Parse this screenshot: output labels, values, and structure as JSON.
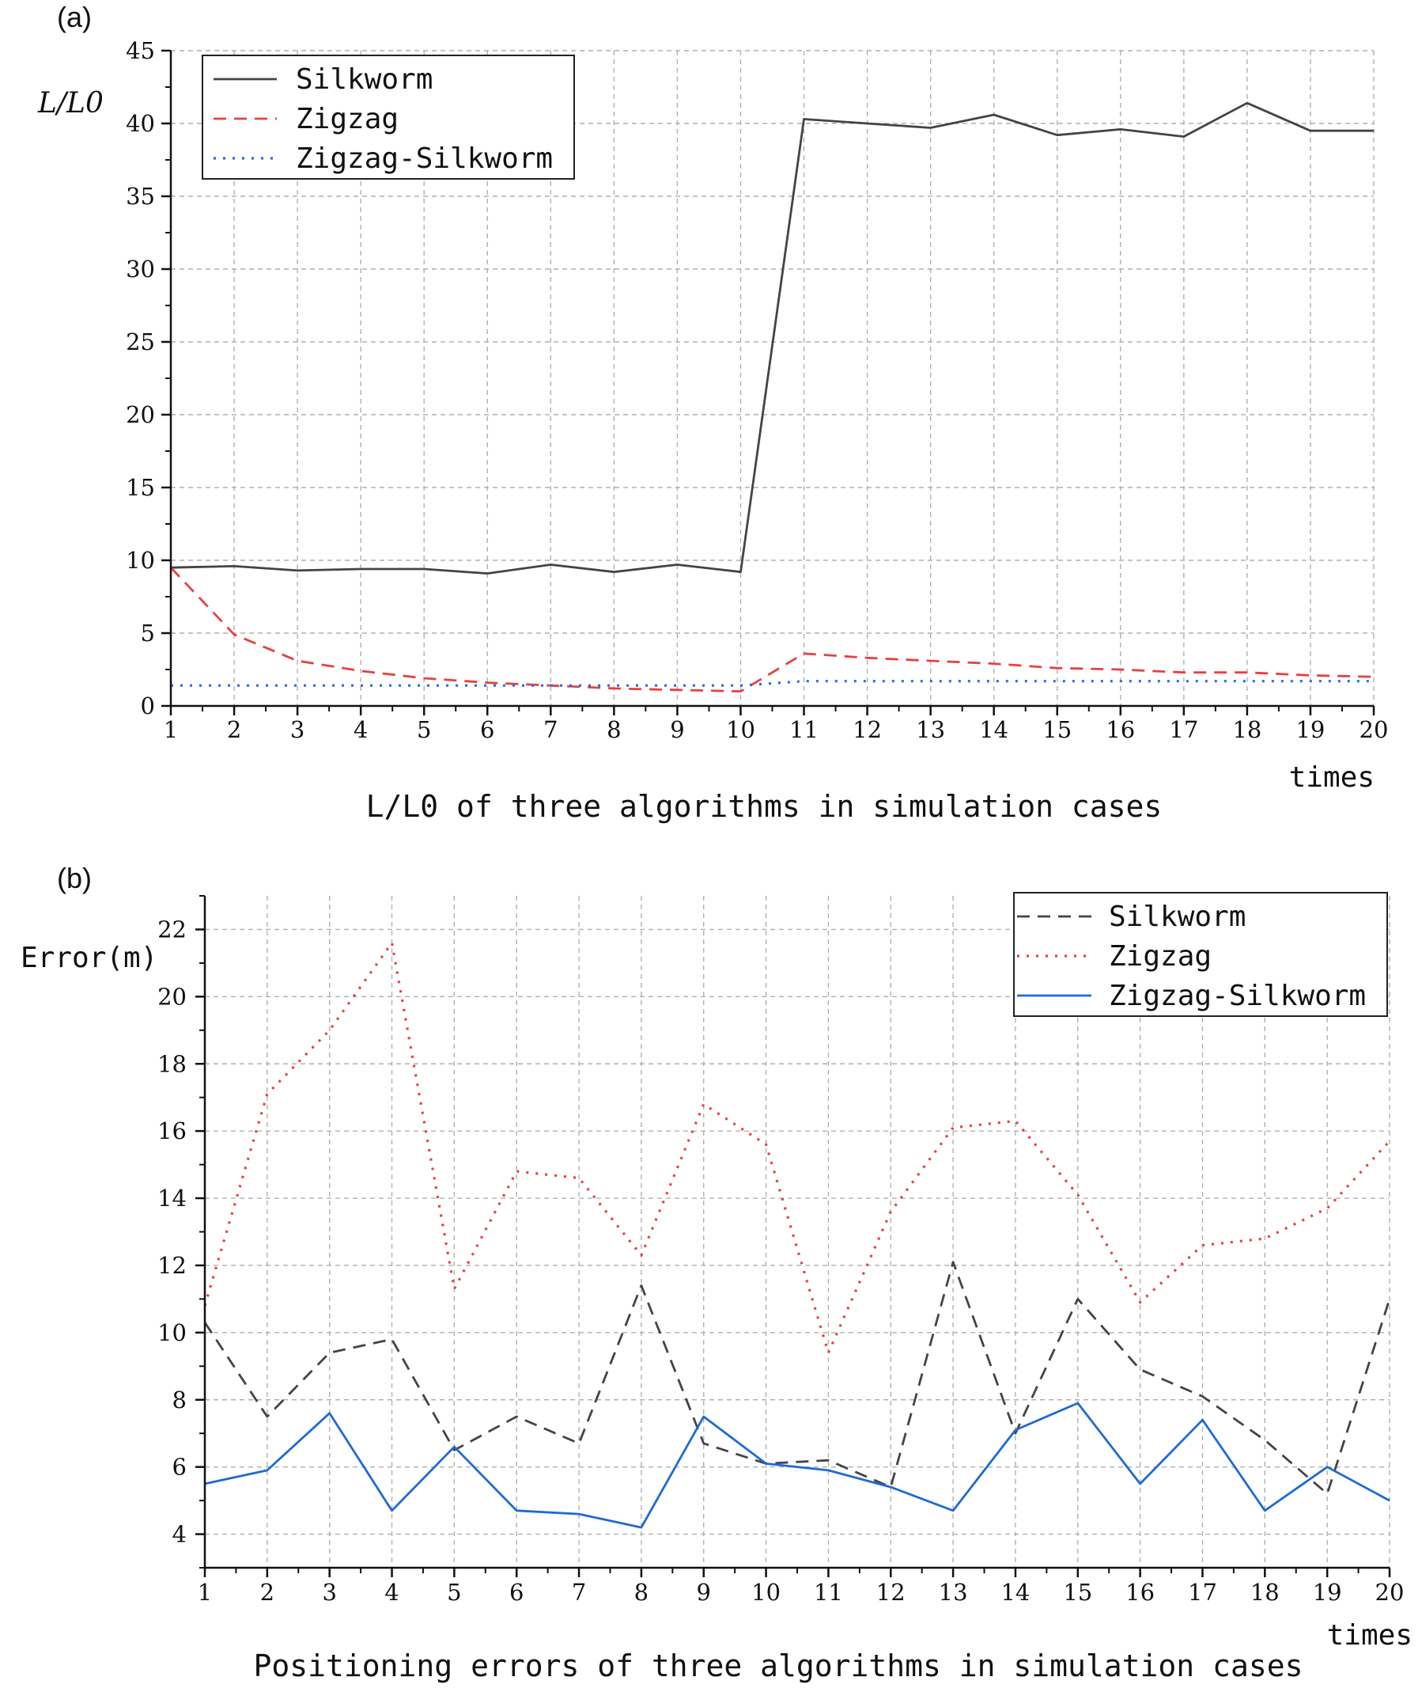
{
  "chart_data": [
    {
      "panel": "(a)",
      "type": "line",
      "title": "",
      "caption": "L/L0 of three algorithms in simulation cases",
      "xlabel": "times",
      "ylabel": "L/L0",
      "xlim": [
        1,
        20
      ],
      "ylim": [
        0,
        45
      ],
      "x": [
        1,
        2,
        3,
        4,
        5,
        6,
        7,
        8,
        9,
        10,
        11,
        12,
        13,
        14,
        15,
        16,
        17,
        18,
        19,
        20
      ],
      "xticks": [
        "1",
        "2",
        "3",
        "4",
        "5",
        "6",
        "7",
        "8",
        "9",
        "10",
        "11",
        "12",
        "13",
        "14",
        "15",
        "16",
        "17",
        "18",
        "19",
        "20"
      ],
      "yticks": [
        "0",
        "5",
        "10",
        "15",
        "20",
        "25",
        "30",
        "35",
        "40",
        "45"
      ],
      "grid": true,
      "legend_position": "top-left",
      "series": [
        {
          "name": "Silkworm",
          "color": "#444444",
          "dash": "solid",
          "values": [
            9.5,
            9.6,
            9.3,
            9.4,
            9.4,
            9.1,
            9.7,
            9.2,
            9.7,
            9.2,
            40.3,
            40.0,
            39.7,
            40.6,
            39.2,
            39.6,
            39.1,
            41.4,
            39.5,
            39.5
          ]
        },
        {
          "name": "Zigzag",
          "color": "#e84040",
          "dash": "dashed",
          "values": [
            9.5,
            4.9,
            3.1,
            2.4,
            1.9,
            1.6,
            1.4,
            1.2,
            1.1,
            1.0,
            3.6,
            3.3,
            3.1,
            2.9,
            2.6,
            2.5,
            2.3,
            2.3,
            2.1,
            2.0
          ]
        },
        {
          "name": "Zigzag-Silkworm",
          "color": "#2a6ed8",
          "dash": "dotted",
          "values": [
            1.4,
            1.4,
            1.4,
            1.4,
            1.4,
            1.4,
            1.4,
            1.4,
            1.4,
            1.4,
            1.7,
            1.7,
            1.7,
            1.7,
            1.7,
            1.7,
            1.7,
            1.7,
            1.7,
            1.7
          ]
        }
      ]
    },
    {
      "panel": "(b)",
      "type": "line",
      "title": "",
      "caption": "Positioning errors of three algorithms in simulation cases",
      "xlabel": "times",
      "ylabel": "Error(m)",
      "xlim": [
        1,
        20
      ],
      "ylim": [
        3,
        23
      ],
      "x": [
        1,
        2,
        3,
        4,
        5,
        6,
        7,
        8,
        9,
        10,
        11,
        12,
        13,
        14,
        15,
        16,
        17,
        18,
        19,
        20
      ],
      "xticks": [
        "1",
        "2",
        "3",
        "4",
        "5",
        "6",
        "7",
        "8",
        "9",
        "10",
        "11",
        "12",
        "13",
        "14",
        "15",
        "16",
        "17",
        "18",
        "19",
        "20"
      ],
      "yticks": [
        "4",
        "6",
        "8",
        "10",
        "12",
        "14",
        "16",
        "18",
        "20",
        "22"
      ],
      "grid": true,
      "legend_position": "top-right",
      "series": [
        {
          "name": "Silkworm",
          "color": "#444444",
          "dash": "dashed",
          "values": [
            10.3,
            7.5,
            9.4,
            9.8,
            6.5,
            7.5,
            6.7,
            11.4,
            6.7,
            6.1,
            6.2,
            5.4,
            12.1,
            7.0,
            11.0,
            8.9,
            8.1,
            6.8,
            5.2,
            11.0
          ]
        },
        {
          "name": "Zigzag",
          "color": "#e84040",
          "dash": "dotted",
          "values": [
            10.8,
            17.1,
            19.0,
            21.6,
            11.3,
            14.8,
            14.6,
            12.3,
            16.8,
            15.6,
            9.4,
            13.6,
            16.1,
            16.3,
            14.1,
            10.9,
            12.6,
            12.8,
            13.7,
            15.7
          ]
        },
        {
          "name": "Zigzag-Silkworm",
          "color": "#1f6ad4",
          "dash": "solid",
          "values": [
            5.5,
            5.9,
            7.6,
            4.7,
            6.6,
            4.7,
            4.6,
            4.2,
            7.5,
            6.1,
            5.9,
            5.4,
            4.7,
            7.1,
            7.9,
            5.5,
            7.4,
            4.7,
            6.0,
            5.0
          ]
        }
      ]
    }
  ]
}
